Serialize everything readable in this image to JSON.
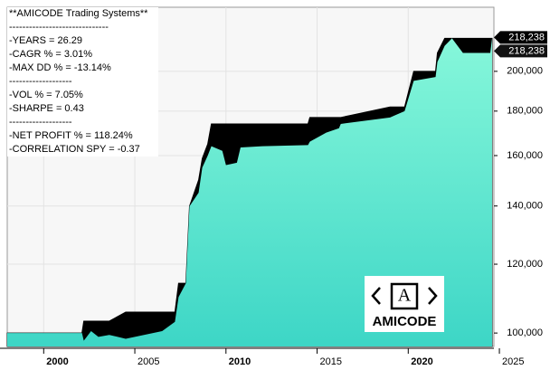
{
  "chart_data": {
    "type": "area",
    "annotations": [
      "**AMICODE Trading Systems**",
      "------------------------------",
      "-YEARS  = 26.29",
      "-CAGR %  = 3.01%",
      "-MAX DD %  = -13.14%",
      "-------------------",
      "-VOL % = 7.05%",
      "-SHARPE = 0.43",
      "-------------------",
      "-NET PROFIT % = 118.24%",
      "-CORRELATION SPY  = -0.37"
    ],
    "logo": {
      "letter": "A",
      "text": "AMICODE"
    },
    "x": [
      1998.0,
      2002.1,
      2002.2,
      2002.6,
      2003.0,
      2003.6,
      2004.5,
      2005.5,
      2006.5,
      2007.2,
      2007.4,
      2007.8,
      2008.0,
      2008.5,
      2008.7,
      2009.0,
      2009.2,
      2009.8,
      2010.0,
      2010.6,
      2010.8,
      2012.0,
      2014.5,
      2014.6,
      2015.5,
      2016.2,
      2016.3,
      2019.0,
      2019.8,
      2020.3,
      2021.5,
      2021.6,
      2022.0,
      2022.4,
      2023.0,
      2024.0,
      2024.5,
      2024.6
    ],
    "series": [
      {
        "color": "#000000",
        "values": [
          100000,
          100000,
          103200,
          103200,
          103200,
          103200,
          105700,
          105700,
          105700,
          105700,
          114100,
          114100,
          139900,
          150000,
          158800,
          165000,
          174000,
          174000,
          174000,
          174000,
          174000,
          174000,
          174000,
          177000,
          177000,
          177000,
          177000,
          182000,
          182000,
          200000,
          200000,
          210000,
          218238,
          218238,
          218238,
          218238,
          218238,
          218238
        ],
        "value_labels": [
          null,
          null,
          null,
          null,
          null,
          null,
          null,
          null,
          null,
          null,
          null,
          null,
          null,
          null,
          null,
          null,
          null,
          null,
          null,
          null,
          null,
          null,
          null,
          null,
          null,
          null,
          null,
          null,
          null,
          null,
          null,
          null,
          null,
          null,
          null,
          null,
          null,
          "218,238"
        ]
      },
      {
        "color": "#5eecd0",
        "values": [
          100000,
          100000,
          98000,
          100500,
          99000,
          99500,
          98500,
          99500,
          100500,
          103000,
          110000,
          114100,
          139900,
          145000,
          155000,
          160000,
          164000,
          162000,
          156000,
          157000,
          163500,
          164000,
          164500,
          166000,
          170000,
          172000,
          174000,
          177000,
          180000,
          195000,
          197000,
          205000,
          214000,
          218238,
          210000,
          210000,
          210000,
          218238
        ],
        "value_labels": [
          null,
          null,
          null,
          null,
          null,
          null,
          null,
          null,
          null,
          null,
          null,
          null,
          null,
          null,
          null,
          null,
          null,
          null,
          null,
          null,
          null,
          null,
          null,
          null,
          null,
          null,
          null,
          null,
          null,
          null,
          null,
          null,
          null,
          null,
          null,
          null,
          null,
          "218,238"
        ]
      }
    ],
    "xlim": [
      1998.0,
      2024.7
    ],
    "xticks": [
      2000,
      2005,
      2010,
      2015,
      2020,
      2025
    ],
    "ylim": [
      96500,
      237000
    ],
    "log_scale": true,
    "yticks": [
      {
        "value": 100000,
        "label": "100,000"
      },
      {
        "value": 120000,
        "label": "120,000"
      },
      {
        "value": 140000,
        "label": "140,000"
      },
      {
        "value": 160000,
        "label": "160,000"
      },
      {
        "value": 180000,
        "label": "180,000"
      },
      {
        "value": 200000,
        "label": "200,000"
      }
    ],
    "grid": true
  }
}
